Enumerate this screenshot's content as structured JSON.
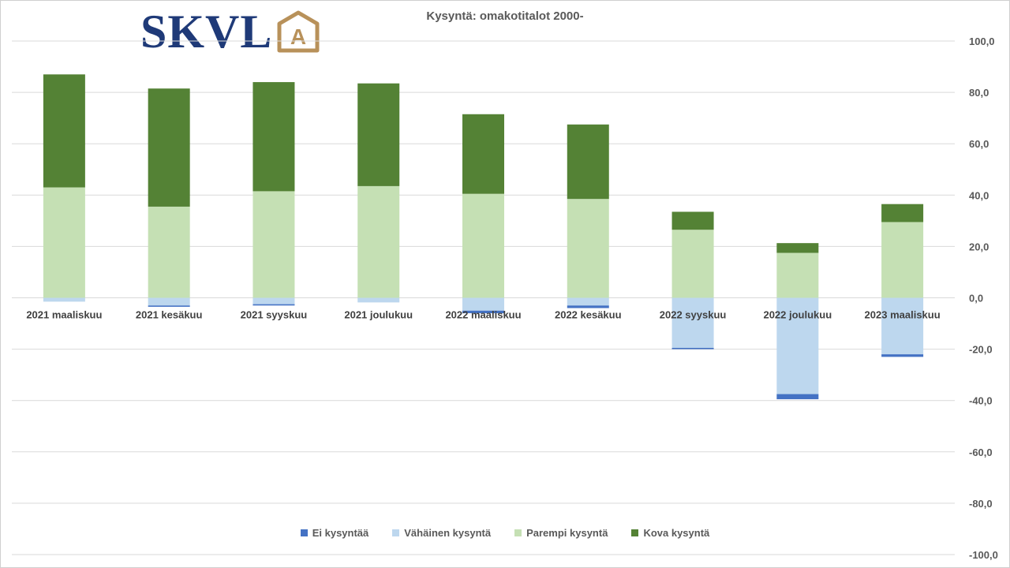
{
  "logo": {
    "text": "SKVL",
    "emblem": "A"
  },
  "chart_data": {
    "type": "bar",
    "stacked": true,
    "title": "Kysyntä: omakotitalot 2000-",
    "categories": [
      "2021 maaliskuu",
      "2021 kesäkuu",
      "2021 syyskuu",
      "2021 joulukuu",
      "2022 maaliskuu",
      "2022 kesäkuu",
      "2022 syyskuu",
      "2022 joulukuu",
      "2023 maaliskuu"
    ],
    "series": [
      {
        "name": "Ei kysyntää",
        "color": "#4472c4",
        "values": [
          0,
          -0.5,
          -0.5,
          0,
          -1.0,
          -1.0,
          -0.5,
          -2.0,
          -1.0
        ],
        "stack": "negative"
      },
      {
        "name": "Vähäinen kysyntä",
        "color": "#bdd7ee",
        "values": [
          -1.5,
          -3.0,
          -2.5,
          -1.8,
          -5.0,
          -3.0,
          -19.5,
          -37.5,
          -22.0
        ],
        "stack": "negative"
      },
      {
        "name": "Parempi kysyntä",
        "color": "#c5e0b4",
        "values": [
          43.0,
          35.5,
          41.5,
          43.5,
          40.5,
          38.5,
          26.5,
          17.5,
          29.5
        ],
        "stack": "positive"
      },
      {
        "name": "Kova kysyntä",
        "color": "#548235",
        "values": [
          44.0,
          46.0,
          42.5,
          40.0,
          31.0,
          29.0,
          7.0,
          3.8,
          7.0
        ],
        "stack": "positive"
      }
    ],
    "ylim": [
      -100,
      100
    ],
    "yticks": [
      "100,0",
      "80,0",
      "60,0",
      "40,0",
      "20,0",
      "0,0",
      "-20,0",
      "-40,0",
      "-60,0",
      "-80,0",
      "-100,0"
    ],
    "ytick_values": [
      100,
      80,
      60,
      40,
      20,
      0,
      -20,
      -40,
      -60,
      -80,
      -100
    ],
    "y_axis_position": "right",
    "grid": true,
    "legend": "bottom"
  }
}
